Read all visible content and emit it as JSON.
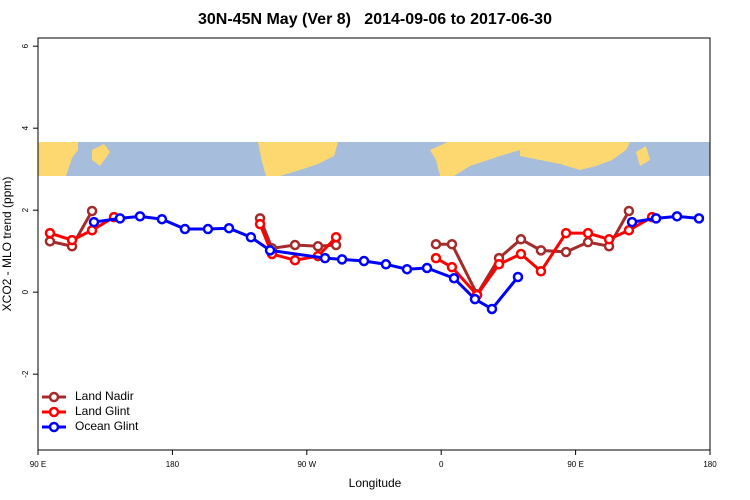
{
  "chart_data": {
    "type": "line",
    "title": "30N-45N May (Ver 8)   2014-09-06 to 2017-06-30",
    "xlabel": "Longitude",
    "ylabel": "XCO2 - MLO trend (ppm)",
    "xlim": [
      90,
      540
    ],
    "ylim": [
      -3.85,
      6.2
    ],
    "xticks": [
      {
        "value": 90,
        "label": "90 E"
      },
      180,
      {
        "value": 270,
        "label": "90 W"
      },
      {
        "value": 360,
        "label": "0"
      },
      {
        "value": 450,
        "label": "90 E"
      },
      {
        "value": 540,
        "label": "180"
      }
    ],
    "yticks": [
      -2,
      0,
      2,
      4,
      6
    ],
    "legend": "bottom-left",
    "series": [
      {
        "name": "Land Nadir",
        "color": "#a52a2a",
        "x": [
          98.0,
          112.8,
          126.2,
          null,
          238.7,
          246.7,
          262.1,
          277.5,
          289.6,
          null,
          356.5,
          367.2,
          384.0,
          398.7,
          413.4,
          426.8,
          443.6,
          458.3,
          472.4,
          485.7
        ],
        "values": [
          1.24,
          1.12,
          1.98,
          null,
          1.8,
          1.07,
          1.15,
          1.12,
          1.15,
          null,
          1.17,
          1.17,
          -0.05,
          0.83,
          1.29,
          1.02,
          0.98,
          1.22,
          1.12,
          1.98
        ]
      },
      {
        "name": "Land Glint",
        "color": "#ff0000",
        "x": [
          98.0,
          112.8,
          126.2,
          140.9,
          null,
          238.7,
          246.7,
          262.1,
          277.5,
          289.6,
          null,
          356.5,
          367.2,
          384.0,
          398.7,
          413.4,
          426.8,
          443.6,
          458.3,
          472.4,
          485.7,
          501.2
        ],
        "values": [
          1.44,
          1.27,
          1.51,
          1.83,
          null,
          1.66,
          0.93,
          0.78,
          0.88,
          1.34,
          null,
          0.83,
          0.61,
          -0.07,
          0.68,
          0.93,
          0.51,
          1.44,
          1.44,
          1.29,
          1.51,
          1.83
        ]
      },
      {
        "name": "Ocean Glint",
        "color": "#0000ff",
        "x": [
          127.5,
          144.9,
          158.3,
          173.0,
          188.4,
          203.8,
          217.9,
          232.6,
          245.4,
          282.2,
          293.6,
          308.3,
          323.0,
          337.1,
          350.5,
          368.6,
          382.6,
          394.0,
          411.4,
          null,
          487.8,
          503.9,
          517.9,
          532.6
        ],
        "values": [
          1.71,
          1.8,
          1.85,
          1.78,
          1.54,
          1.54,
          1.56,
          1.34,
          1.02,
          0.83,
          0.8,
          0.76,
          0.68,
          0.56,
          0.59,
          0.34,
          -0.17,
          -0.41,
          0.37,
          null,
          1.71,
          1.8,
          1.85,
          1.8
        ]
      }
    ]
  }
}
